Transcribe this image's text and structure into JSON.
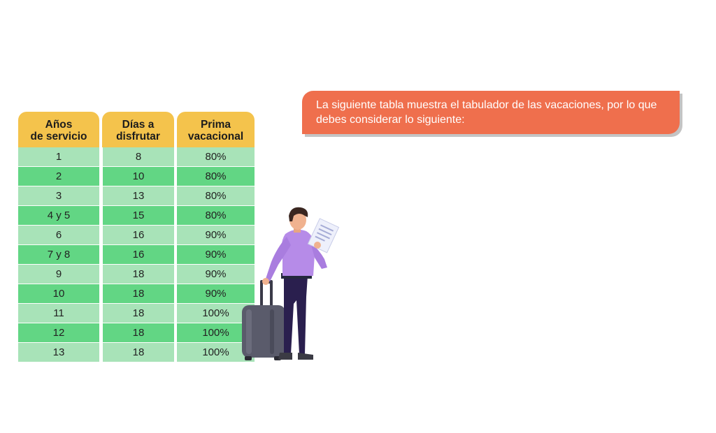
{
  "banner": {
    "text": "La siguiente tabla muestra el tabulador de las vacaciones, por lo que debes considerar lo siguiente:"
  },
  "table": {
    "headers": [
      "Años\nde servicio",
      "Días a\ndisfrutar",
      "Prima\nvacacional"
    ],
    "rows": [
      [
        "1",
        "8",
        "80%"
      ],
      [
        "2",
        "10",
        "80%"
      ],
      [
        "3",
        "13",
        "80%"
      ],
      [
        "4 y 5",
        "15",
        "80%"
      ],
      [
        "6",
        "16",
        "90%"
      ],
      [
        "7 y 8",
        "16",
        "90%"
      ],
      [
        "9",
        "18",
        "90%"
      ],
      [
        "10",
        "18",
        "90%"
      ],
      [
        "11",
        "18",
        "100%"
      ],
      [
        "12",
        "18",
        "100%"
      ],
      [
        "13",
        "18",
        "100%"
      ]
    ]
  },
  "colors": {
    "header": "#f4c34c",
    "row_light": "#a8e3b8",
    "row_dark": "#62d684",
    "banner": "#ef6f4d"
  },
  "illustration": {
    "icon": "traveler-with-suitcase-icon"
  }
}
